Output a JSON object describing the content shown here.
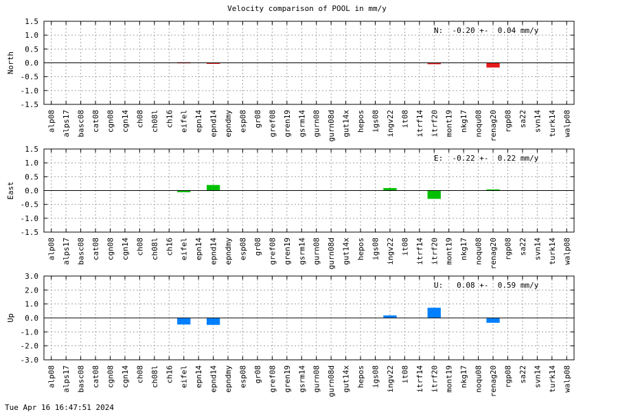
{
  "title": "Velocity comparison of POOL in mm/y",
  "footer_timestamp": "Tue Apr 16 16:47:51 2024",
  "chart_data": [
    {
      "type": "bar",
      "ylabel": "North",
      "ylim": [
        -1.5,
        1.5
      ],
      "yticks": [
        "1.5",
        "1.0",
        "0.5",
        "0.0",
        "-0.5",
        "-1.0",
        "-1.5"
      ],
      "grid": true,
      "color": "#e41a1c",
      "annotation": "N:  -0.20 +-  0.04 mm/y",
      "categories": [
        "alp08",
        "alps17",
        "basc08",
        "cat08",
        "cgn08",
        "cgn14",
        "ch08",
        "ch08l",
        "ch16",
        "eifel",
        "epn14",
        "epnd14",
        "epndmy",
        "esp08",
        "gr08",
        "gref08",
        "gren19",
        "gsrm14",
        "gurn08",
        "gurn08d",
        "gut14x",
        "hepos",
        "igs08",
        "ingv22",
        "it08",
        "itrf14",
        "itrf20",
        "mont19",
        "nkg17",
        "noqu08",
        "renag20",
        "rgp08",
        "sa22",
        "svn14",
        "turk14",
        "walp08"
      ],
      "values": [
        null,
        null,
        null,
        null,
        null,
        null,
        null,
        null,
        null,
        0.02,
        null,
        -0.02,
        null,
        null,
        null,
        null,
        null,
        null,
        null,
        null,
        null,
        null,
        null,
        null,
        null,
        null,
        -0.05,
        null,
        null,
        null,
        -0.17,
        null,
        null,
        null,
        null,
        null
      ]
    },
    {
      "type": "bar",
      "ylabel": "East",
      "ylim": [
        -1.5,
        1.5
      ],
      "yticks": [
        "1.5",
        "1.0",
        "0.5",
        "0.0",
        "-0.5",
        "-1.0",
        "-1.5"
      ],
      "grid": true,
      "color": "#00c000",
      "annotation": "E:  -0.22 +-  0.22 mm/y",
      "categories": [
        "alp08",
        "alps17",
        "basc08",
        "cat08",
        "cgn08",
        "cgn14",
        "ch08",
        "ch08l",
        "ch16",
        "eifel",
        "epn14",
        "epnd14",
        "epndmy",
        "esp08",
        "gr08",
        "gref08",
        "gren19",
        "gsrm14",
        "gurn08",
        "gurn08d",
        "gut14x",
        "hepos",
        "igs08",
        "ingv22",
        "it08",
        "itrf14",
        "itrf20",
        "mont19",
        "nkg17",
        "noqu08",
        "renag20",
        "rgp08",
        "sa22",
        "svn14",
        "turk14",
        "walp08"
      ],
      "values": [
        null,
        null,
        null,
        null,
        null,
        null,
        null,
        null,
        null,
        -0.06,
        null,
        0.2,
        null,
        null,
        null,
        null,
        null,
        null,
        null,
        null,
        null,
        null,
        null,
        0.09,
        null,
        null,
        -0.3,
        null,
        null,
        null,
        0.04,
        null,
        null,
        null,
        null,
        null
      ]
    },
    {
      "type": "bar",
      "ylabel": "Up",
      "ylim": [
        -3.0,
        3.0
      ],
      "yticks": [
        "3.0",
        "2.0",
        "1.0",
        "0.0",
        "-1.0",
        "-2.0",
        "-3.0"
      ],
      "grid": true,
      "color": "#0080ff",
      "annotation": "U:   0.08 +-  0.59 mm/y",
      "categories": [
        "alp08",
        "alps17",
        "basc08",
        "cat08",
        "cgn08",
        "cgn14",
        "ch08",
        "ch08l",
        "ch16",
        "eifel",
        "epn14",
        "epnd14",
        "epndmy",
        "esp08",
        "gr08",
        "gref08",
        "gren19",
        "gsrm14",
        "gurn08",
        "gurn08d",
        "gut14x",
        "hepos",
        "igs08",
        "ingv22",
        "it08",
        "itrf14",
        "itrf20",
        "mont19",
        "nkg17",
        "noqu08",
        "renag20",
        "rgp08",
        "sa22",
        "svn14",
        "turk14",
        "walp08"
      ],
      "values": [
        null,
        null,
        null,
        null,
        null,
        null,
        null,
        null,
        null,
        -0.47,
        null,
        -0.5,
        null,
        null,
        null,
        null,
        null,
        null,
        null,
        null,
        null,
        null,
        null,
        0.18,
        null,
        null,
        0.73,
        null,
        null,
        null,
        -0.35,
        null,
        null,
        null,
        null,
        null
      ]
    }
  ]
}
